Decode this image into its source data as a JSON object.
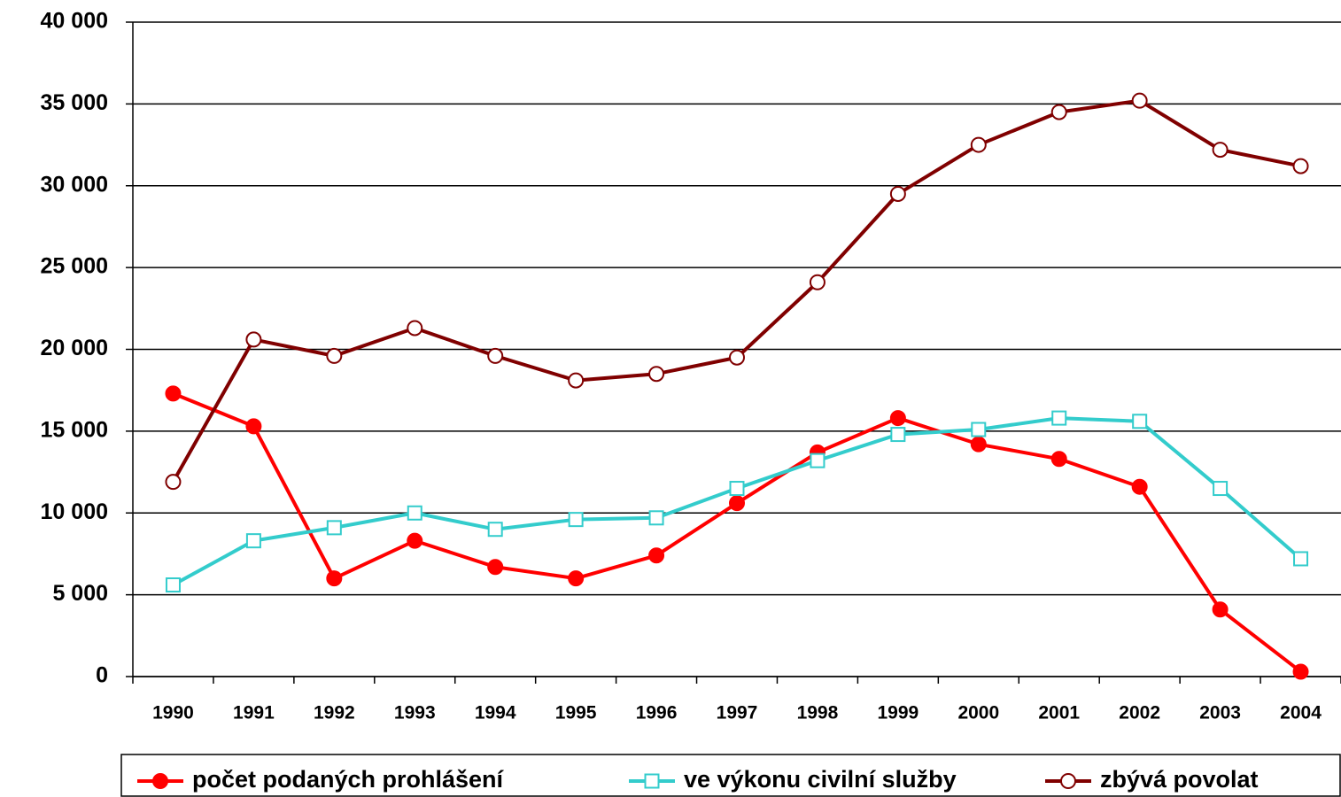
{
  "chart_data": {
    "type": "line",
    "categories": [
      "1990",
      "1991",
      "1992",
      "1993",
      "1994",
      "1995",
      "1996",
      "1997",
      "1998",
      "1999",
      "2000",
      "2001",
      "2002",
      "2003",
      "2004"
    ],
    "series": [
      {
        "name": "počet podaných prohlášení",
        "color": "#ff0000",
        "marker": "filled-circle",
        "values": [
          17300,
          15300,
          6000,
          8300,
          6700,
          6000,
          7400,
          10600,
          13700,
          15800,
          14200,
          13300,
          11600,
          4100,
          300
        ]
      },
      {
        "name": "ve výkonu civilní služby",
        "color": "#33cccc",
        "marker": "open-square",
        "values": [
          5600,
          8300,
          9100,
          10000,
          9000,
          9600,
          9700,
          11500,
          13200,
          14800,
          15100,
          15800,
          15600,
          11500,
          7200
        ]
      },
      {
        "name": "zbývá povolat",
        "color": "#800000",
        "marker": "open-circle",
        "values": [
          11900,
          20600,
          19600,
          21300,
          19600,
          18100,
          18500,
          19500,
          24100,
          29500,
          32500,
          34500,
          35200,
          32200,
          31200
        ]
      }
    ],
    "ylim": [
      0,
      40000
    ],
    "yticks": [
      0,
      {
        "value": 5000,
        "label": "5 000"
      },
      {
        "value": 10000,
        "label": "10 000"
      },
      {
        "value": 15000,
        "label": "15 000"
      },
      {
        "value": 20000,
        "label": "20 000"
      },
      {
        "value": 25000,
        "label": "25 000"
      },
      {
        "value": 30000,
        "label": "30 000"
      },
      {
        "value": 35000,
        "label": "35 000"
      },
      {
        "value": 40000,
        "label": "40 000"
      }
    ],
    "grid": true,
    "legend": "bottom"
  }
}
